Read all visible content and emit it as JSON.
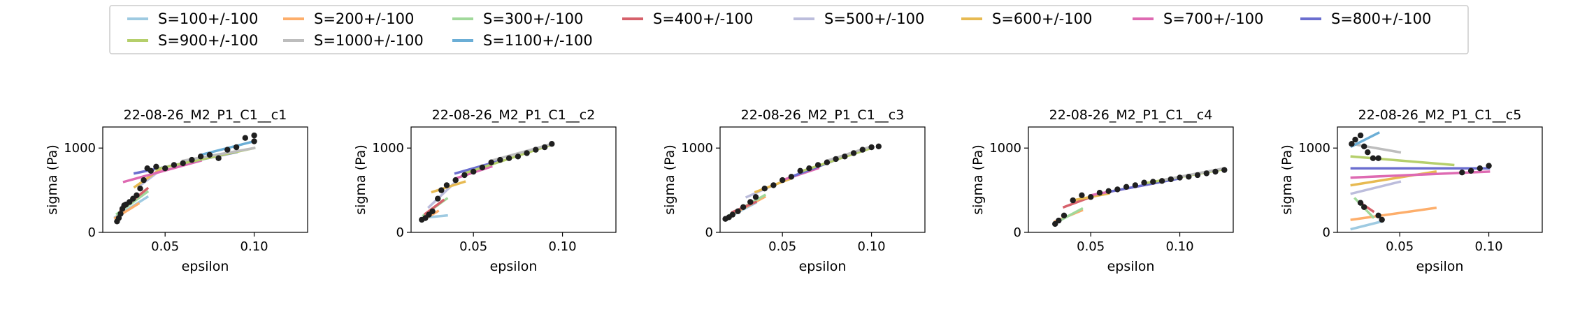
{
  "legend": {
    "placement": "top-center",
    "items": [
      {
        "label": "S=100+/-100",
        "color": "#9ecae1"
      },
      {
        "label": "S=200+/-100",
        "color": "#fdae6b"
      },
      {
        "label": "S=300+/-100",
        "color": "#a1d99b"
      },
      {
        "label": "S=400+/-100",
        "color": "#d6616b"
      },
      {
        "label": "S=500+/-100",
        "color": "#bcbddc"
      },
      {
        "label": "S=600+/-100",
        "color": "#e7ba52"
      },
      {
        "label": "S=700+/-100",
        "color": "#de6ab2"
      },
      {
        "label": "S=800+/-100",
        "color": "#6b6ecf"
      },
      {
        "label": "S=900+/-100",
        "color": "#b5cf6b"
      },
      {
        "label": "S=1000+/-100",
        "color": "#bdbdbd"
      },
      {
        "label": "S=1100+/-100",
        "color": "#6baed6"
      }
    ]
  },
  "chart_data": [
    {
      "type": "scatter",
      "title": "22-08-26_M2_P1_C1__c1",
      "xlabel": "epsilon",
      "ylabel": "sigma (Pa)",
      "xlim": [
        0.015,
        0.13
      ],
      "ylim": [
        0,
        1250
      ],
      "xticks": [
        0.05,
        0.1
      ],
      "xtick_labels": [
        "0.05",
        "0.10"
      ],
      "yticks": [
        0,
        1000
      ],
      "ytick_labels": [
        "0",
        "1000"
      ],
      "points": {
        "x": [
          0.023,
          0.024,
          0.025,
          0.026,
          0.027,
          0.028,
          0.03,
          0.032,
          0.034,
          0.036,
          0.038,
          0.04,
          0.042,
          0.045,
          0.05,
          0.055,
          0.06,
          0.065,
          0.07,
          0.075,
          0.08,
          0.085,
          0.09,
          0.095,
          0.1,
          0.1
        ],
        "y": [
          130,
          170,
          220,
          280,
          320,
          330,
          360,
          400,
          440,
          520,
          620,
          760,
          730,
          780,
          760,
          800,
          820,
          860,
          900,
          920,
          880,
          980,
          1010,
          1120,
          1150,
          1080
        ]
      },
      "series": [
        {
          "legend_index": 0,
          "x": [
            0.022,
            0.04
          ],
          "y": [
            180,
            420
          ]
        },
        {
          "legend_index": 1,
          "x": [
            0.022,
            0.035
          ],
          "y": [
            170,
            340
          ]
        },
        {
          "legend_index": 2,
          "x": [
            0.023,
            0.04
          ],
          "y": [
            220,
            480
          ]
        },
        {
          "legend_index": 3,
          "x": [
            0.025,
            0.04
          ],
          "y": [
            260,
            520
          ]
        },
        {
          "legend_index": 4,
          "x": [
            0.035,
            0.045
          ],
          "y": [
            540,
            700
          ]
        },
        {
          "legend_index": 5,
          "x": [
            0.033,
            0.048
          ],
          "y": [
            540,
            760
          ]
        },
        {
          "legend_index": 6,
          "x": [
            0.027,
            0.07
          ],
          "y": [
            600,
            850
          ]
        },
        {
          "legend_index": 7,
          "x": [
            0.033,
            0.09
          ],
          "y": [
            700,
            950
          ]
        },
        {
          "legend_index": 8,
          "x": [
            0.045,
            0.1
          ],
          "y": [
            750,
            1000
          ]
        },
        {
          "legend_index": 9,
          "x": [
            0.06,
            0.1
          ],
          "y": [
            850,
            1000
          ]
        },
        {
          "legend_index": 10,
          "x": [
            0.07,
            0.1
          ],
          "y": [
            920,
            1080
          ]
        }
      ]
    },
    {
      "type": "scatter",
      "title": "22-08-26_M2_P1_C1__c2",
      "xlabel": "epsilon",
      "ylabel": "sigma (Pa)",
      "xlim": [
        0.015,
        0.13
      ],
      "ylim": [
        0,
        1250
      ],
      "xticks": [
        0.05,
        0.1
      ],
      "xtick_labels": [
        "0.05",
        "0.10"
      ],
      "yticks": [
        0,
        1000
      ],
      "ytick_labels": [
        "0",
        "1000"
      ],
      "points": {
        "x": [
          0.021,
          0.023,
          0.025,
          0.027,
          0.03,
          0.032,
          0.035,
          0.04,
          0.045,
          0.05,
          0.055,
          0.06,
          0.065,
          0.07,
          0.075,
          0.08,
          0.085,
          0.09,
          0.094
        ],
        "y": [
          150,
          170,
          210,
          250,
          400,
          500,
          560,
          620,
          680,
          720,
          770,
          830,
          860,
          880,
          900,
          940,
          980,
          1010,
          1050
        ]
      },
      "series": [
        {
          "legend_index": 0,
          "x": [
            0.025,
            0.035
          ],
          "y": [
            180,
            200
          ]
        },
        {
          "legend_index": 1,
          "x": [
            0.022,
            0.03
          ],
          "y": [
            150,
            250
          ]
        },
        {
          "legend_index": 2,
          "x": [
            0.022,
            0.035
          ],
          "y": [
            200,
            400
          ]
        },
        {
          "legend_index": 3,
          "x": [
            0.023,
            0.033
          ],
          "y": [
            220,
            380
          ]
        },
        {
          "legend_index": 4,
          "x": [
            0.025,
            0.04
          ],
          "y": [
            300,
            600
          ]
        },
        {
          "legend_index": 5,
          "x": [
            0.027,
            0.045
          ],
          "y": [
            480,
            600
          ]
        },
        {
          "legend_index": 6,
          "x": [
            0.04,
            0.06
          ],
          "y": [
            640,
            780
          ]
        },
        {
          "legend_index": 7,
          "x": [
            0.04,
            0.065
          ],
          "y": [
            700,
            850
          ]
        },
        {
          "legend_index": 8,
          "x": [
            0.045,
            0.094
          ],
          "y": [
            700,
            1040
          ]
        },
        {
          "legend_index": 9,
          "x": [
            0.06,
            0.094
          ],
          "y": [
            850,
            1050
          ]
        }
      ]
    },
    {
      "type": "scatter",
      "title": "22-08-26_M2_P1_C1__c3",
      "xlabel": "epsilon",
      "ylabel": "sigma (Pa)",
      "xlim": [
        0.015,
        0.13
      ],
      "ylim": [
        0,
        1250
      ],
      "xticks": [
        0.05,
        0.1
      ],
      "xtick_labels": [
        "0.05",
        "0.10"
      ],
      "yticks": [
        0,
        1000
      ],
      "ytick_labels": [
        "0",
        "1000"
      ],
      "points": {
        "x": [
          0.018,
          0.02,
          0.022,
          0.025,
          0.028,
          0.032,
          0.035,
          0.04,
          0.045,
          0.05,
          0.055,
          0.06,
          0.065,
          0.07,
          0.075,
          0.08,
          0.085,
          0.09,
          0.095,
          0.1,
          0.104
        ],
        "y": [
          160,
          180,
          210,
          250,
          300,
          360,
          420,
          520,
          560,
          620,
          660,
          730,
          760,
          800,
          830,
          870,
          900,
          940,
          980,
          1010,
          1020
        ]
      },
      "series": [
        {
          "legend_index": 0,
          "x": [
            0.018,
            0.035
          ],
          "y": [
            160,
            350
          ]
        },
        {
          "legend_index": 1,
          "x": [
            0.018,
            0.04
          ],
          "y": [
            170,
            420
          ]
        },
        {
          "legend_index": 2,
          "x": [
            0.02,
            0.04
          ],
          "y": [
            200,
            440
          ]
        },
        {
          "legend_index": 3,
          "x": [
            0.022,
            0.035
          ],
          "y": [
            240,
            360
          ]
        },
        {
          "legend_index": 4,
          "x": [
            0.03,
            0.045
          ],
          "y": [
            420,
            560
          ]
        },
        {
          "legend_index": 5,
          "x": [
            0.035,
            0.055
          ],
          "y": [
            480,
            640
          ]
        },
        {
          "legend_index": 6,
          "x": [
            0.05,
            0.07
          ],
          "y": [
            620,
            760
          ]
        },
        {
          "legend_index": 7,
          "x": [
            0.055,
            0.08
          ],
          "y": [
            660,
            860
          ]
        },
        {
          "legend_index": 8,
          "x": [
            0.06,
            0.1
          ],
          "y": [
            720,
            1000
          ]
        },
        {
          "legend_index": 9,
          "x": [
            0.075,
            0.1
          ],
          "y": [
            850,
            1020
          ]
        }
      ]
    },
    {
      "type": "scatter",
      "title": "22-08-26_M2_P1_C1__c4",
      "xlabel": "epsilon",
      "ylabel": "sigma (Pa)",
      "xlim": [
        0.015,
        0.13
      ],
      "ylim": [
        0,
        1250
      ],
      "xticks": [
        0.05,
        0.1
      ],
      "xtick_labels": [
        "0.05",
        "0.10"
      ],
      "yticks": [
        0,
        1000
      ],
      "ytick_labels": [
        "0",
        "1000"
      ],
      "points": {
        "x": [
          0.03,
          0.032,
          0.035,
          0.04,
          0.045,
          0.05,
          0.055,
          0.06,
          0.065,
          0.07,
          0.075,
          0.08,
          0.085,
          0.09,
          0.095,
          0.1,
          0.105,
          0.11,
          0.115,
          0.12,
          0.125
        ],
        "y": [
          100,
          140,
          200,
          380,
          440,
          420,
          470,
          490,
          510,
          540,
          560,
          590,
          600,
          610,
          630,
          650,
          660,
          680,
          700,
          720,
          740
        ]
      },
      "series": [
        {
          "legend_index": 0,
          "x": [
            0.03,
            0.04
          ],
          "y": [
            120,
            220
          ]
        },
        {
          "legend_index": 1,
          "x": [
            0.03,
            0.045
          ],
          "y": [
            130,
            260
          ]
        },
        {
          "legend_index": 2,
          "x": [
            0.03,
            0.045
          ],
          "y": [
            110,
            280
          ]
        },
        {
          "legend_index": 3,
          "x": [
            0.035,
            0.05
          ],
          "y": [
            300,
            420
          ]
        },
        {
          "legend_index": 5,
          "x": [
            0.04,
            0.06
          ],
          "y": [
            380,
            460
          ]
        },
        {
          "legend_index": 6,
          "x": [
            0.05,
            0.09
          ],
          "y": [
            440,
            600
          ]
        },
        {
          "legend_index": 7,
          "x": [
            0.06,
            0.1
          ],
          "y": [
            480,
            640
          ]
        },
        {
          "legend_index": 8,
          "x": [
            0.08,
            0.125
          ],
          "y": [
            580,
            750
          ]
        },
        {
          "legend_index": 9,
          "x": [
            0.09,
            0.125
          ],
          "y": [
            620,
            760
          ]
        }
      ]
    },
    {
      "type": "scatter",
      "title": "22-08-26_M2_P1_C1__c5",
      "xlabel": "epsilon",
      "ylabel": "sigma (Pa)",
      "xlim": [
        0.015,
        0.13
      ],
      "ylim": [
        0,
        1250
      ],
      "xticks": [
        0.05,
        0.1
      ],
      "xtick_labels": [
        "0.05",
        "0.10"
      ],
      "yticks": [
        0,
        1000
      ],
      "ytick_labels": [
        "0",
        "1000"
      ],
      "points": {
        "x": [
          0.023,
          0.025,
          0.028,
          0.03,
          0.032,
          0.035,
          0.038,
          0.04,
          0.028,
          0.03,
          0.038,
          0.085,
          0.09,
          0.095,
          0.1
        ],
        "y": [
          1050,
          1100,
          1150,
          1020,
          950,
          880,
          200,
          150,
          350,
          300,
          880,
          710,
          730,
          760,
          790
        ]
      },
      "series": [
        {
          "legend_index": 0,
          "x": [
            0.023,
            0.04
          ],
          "y": [
            40,
            130
          ]
        },
        {
          "legend_index": 1,
          "x": [
            0.023,
            0.07
          ],
          "y": [
            150,
            290
          ]
        },
        {
          "legend_index": 2,
          "x": [
            0.025,
            0.035
          ],
          "y": [
            400,
            180
          ]
        },
        {
          "legend_index": 3,
          "x": [
            0.028,
            0.035
          ],
          "y": [
            350,
            250
          ]
        },
        {
          "legend_index": 4,
          "x": [
            0.023,
            0.05
          ],
          "y": [
            460,
            600
          ]
        },
        {
          "legend_index": 5,
          "x": [
            0.023,
            0.07
          ],
          "y": [
            560,
            720
          ]
        },
        {
          "legend_index": 6,
          "x": [
            0.023,
            0.1
          ],
          "y": [
            650,
            720
          ]
        },
        {
          "legend_index": 7,
          "x": [
            0.023,
            0.1
          ],
          "y": [
            760,
            760
          ]
        },
        {
          "legend_index": 8,
          "x": [
            0.023,
            0.08
          ],
          "y": [
            900,
            800
          ]
        },
        {
          "legend_index": 9,
          "x": [
            0.023,
            0.05
          ],
          "y": [
            1050,
            950
          ]
        },
        {
          "legend_index": 10,
          "x": [
            0.023,
            0.038
          ],
          "y": [
            1020,
            1180
          ]
        }
      ]
    }
  ]
}
